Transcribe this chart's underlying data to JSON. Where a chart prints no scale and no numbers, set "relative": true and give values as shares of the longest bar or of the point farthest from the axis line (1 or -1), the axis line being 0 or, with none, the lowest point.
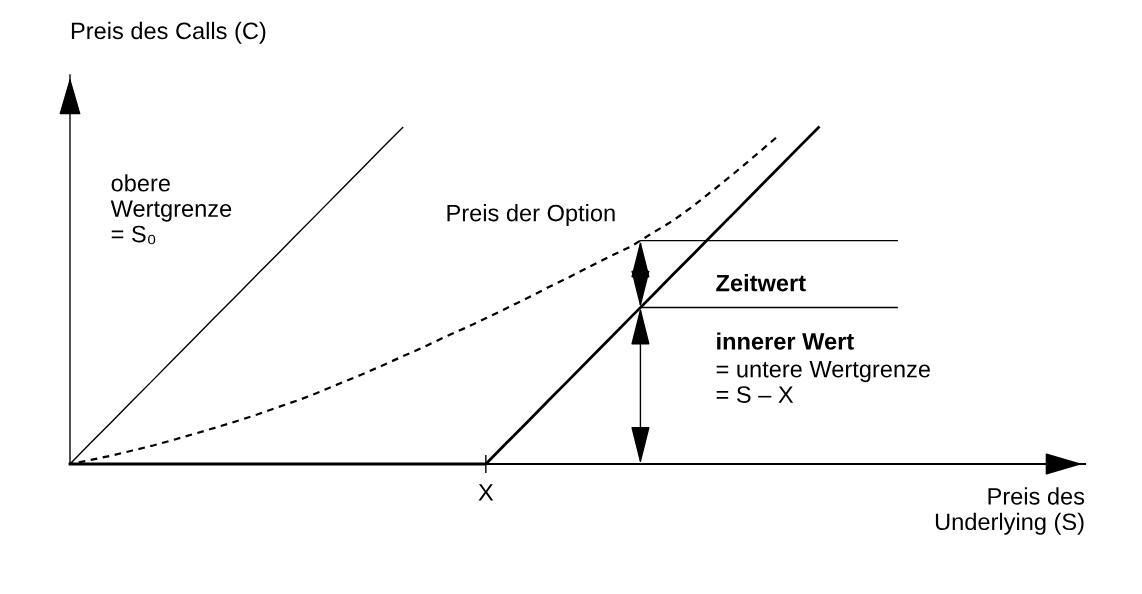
{
  "chart_data": {
    "type": "line",
    "relative": true,
    "xlabel": "Preis des\nUnderlying (S)",
    "ylabel": "Preis des Calls (C)",
    "marker": "none",
    "categories": [
      null,
      null,
      null,
      null,
      null,
      null,
      null,
      null,
      null,
      null,
      null,
      null,
      null,
      null,
      null,
      null,
      null,
      null,
      null,
      null,
      null,
      null,
      null,
      null,
      null,
      null,
      null,
      null,
      null,
      null,
      null,
      null,
      null,
      null,
      null,
      null,
      null,
      null,
      null,
      null,
      null,
      null,
      null,
      null,
      null,
      null,
      null,
      null,
      null
    ],
    "series": [
      {
        "color": "#000000",
        "line_style": "solid",
        "values": [
          0,
          0.063,
          0.125,
          0.188,
          0.25,
          0.313,
          0.375,
          0.438,
          0.5,
          0.563,
          0.625,
          0.688,
          0.75,
          0.813,
          0.875,
          0.938,
          1,
          null,
          null,
          null,
          null,
          null,
          null,
          null,
          null,
          null,
          null,
          null,
          null,
          null,
          null,
          null,
          null,
          null,
          null,
          null,
          null,
          null,
          null,
          null,
          null,
          null,
          null,
          null,
          null,
          null,
          null,
          null,
          null
        ]
      },
      {
        "color": "#000000",
        "line_style": "solid",
        "values": [
          0,
          0,
          0,
          0,
          0,
          0,
          0,
          0,
          0,
          0,
          0,
          0,
          0,
          0,
          0,
          0,
          0,
          0,
          0,
          0,
          0,
          0.063,
          0.125,
          0.188,
          0.25,
          0.313,
          0.375,
          0.438,
          0.5,
          0.563,
          0.625,
          0.688,
          0.75,
          0.813,
          0.875,
          0.938,
          1,
          null,
          null,
          null,
          null,
          null,
          null,
          null,
          null,
          null,
          null,
          null,
          null
        ]
      },
      {
        "color": "#000000",
        "line_style": "dashed",
        "values": [
          0,
          0.012,
          0.025,
          0.04,
          0.055,
          0.072,
          0.09,
          0.108,
          0.127,
          0.147,
          0.169,
          0.19,
          0.214,
          0.24,
          0.265,
          0.292,
          0.32,
          0.347,
          0.377,
          0.404,
          0.433,
          0.463,
          0.493,
          0.525,
          0.555,
          0.587,
          0.618,
          0.647,
          0.686,
          0.723,
          0.768,
          0.817,
          0.867,
          0.919,
          0.972,
          null,
          null,
          null,
          null,
          null,
          null,
          null,
          null,
          null,
          null,
          null,
          null,
          null,
          null
        ]
      }
    ],
    "annotations": [
      "obere\nWertgrenze\n= S₀",
      "Preis der Option",
      "Zeitwert",
      "innerer Wert",
      "= untere Wertgrenze\n= S – X",
      "X"
    ]
  }
}
